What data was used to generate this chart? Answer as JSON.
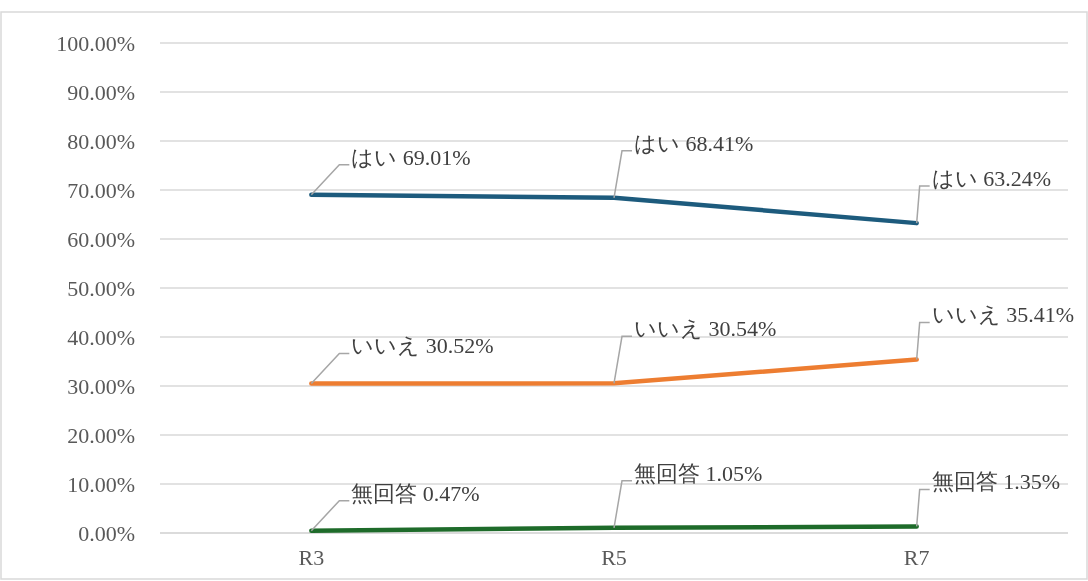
{
  "chart_data": {
    "type": "line",
    "categories": [
      "R3",
      "R5",
      "R7"
    ],
    "series": [
      {
        "name": "はい",
        "color": "#1d5b7d",
        "values": [
          69.01,
          68.41,
          63.24
        ],
        "value_labels": [
          "69.01%",
          "68.41%",
          "63.24%"
        ]
      },
      {
        "name": "いいえ",
        "color": "#ed7d31",
        "values": [
          30.52,
          30.54,
          35.41
        ],
        "value_labels": [
          "30.52%",
          "30.54%",
          "35.41%"
        ]
      },
      {
        "name": "無回答",
        "color": "#1e6b2a",
        "values": [
          0.47,
          1.05,
          1.35
        ],
        "value_labels": [
          "0.47%",
          "1.05%",
          "1.35%"
        ]
      }
    ],
    "ylim": [
      0,
      100
    ],
    "yticks": [
      {
        "value": 0,
        "label": "0.00%"
      },
      {
        "value": 10,
        "label": "10.00%"
      },
      {
        "value": 20,
        "label": "20.00%"
      },
      {
        "value": 30,
        "label": "30.00%"
      },
      {
        "value": 40,
        "label": "40.00%"
      },
      {
        "value": 50,
        "label": "50.00%"
      },
      {
        "value": 60,
        "label": "60.00%"
      },
      {
        "value": 70,
        "label": "70.00%"
      },
      {
        "value": 80,
        "label": "80.00%"
      },
      {
        "value": 90,
        "label": "90.00%"
      },
      {
        "value": 100,
        "label": "100.00%"
      }
    ],
    "grid": "y",
    "legend": false,
    "marker": "none",
    "line_style": "solid"
  }
}
